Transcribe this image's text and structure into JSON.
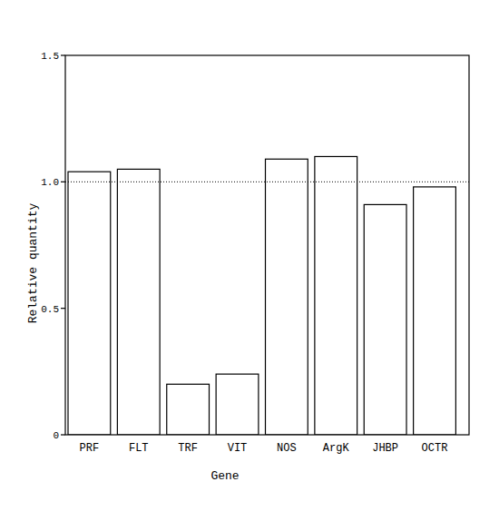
{
  "chart_data": {
    "type": "bar",
    "x_label": "Gene",
    "y_label": "Relative quantity",
    "categories": [
      "PRF",
      "FLT",
      "TRF",
      "VIT",
      "NOS",
      "ArgK",
      "JHBP",
      "OCTR"
    ],
    "values": [
      1.04,
      1.05,
      0.2,
      0.24,
      1.09,
      1.1,
      0.91,
      0.98
    ],
    "color": "#ffffff",
    "ylim": [
      0,
      1.5
    ],
    "yticks": [
      0,
      0.5,
      {
        "value": 1,
        "label": "1.0"
      },
      1.5
    ],
    "reference_line": 1,
    "grid": false
  }
}
